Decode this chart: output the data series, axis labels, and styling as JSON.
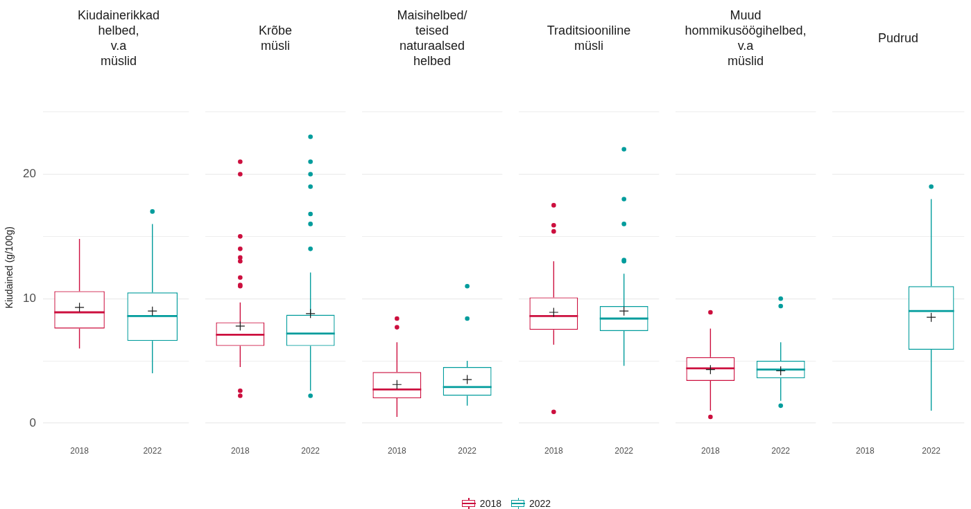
{
  "chart_data": [
    {
      "type": "box",
      "title": "Kiudainerikkad\nhelbed,\nv.a\nmüslid",
      "ylabel": "Kiudained (g/100g)",
      "categories": [
        "2018",
        "2022"
      ],
      "series": [
        {
          "name": "2018",
          "color": "#cc0f3e",
          "boxes": [
            {
              "low": 6.0,
              "q1": 7.6,
              "median": 8.9,
              "q3": 10.6,
              "high": 14.8,
              "mean": 9.3
            },
            null
          ]
        },
        {
          "name": "2022",
          "color": "#009c9c",
          "boxes": [
            null,
            {
              "low": 4.0,
              "q1": 6.6,
              "median": 8.6,
              "q3": 10.5,
              "high": 16.0,
              "mean": 9.0,
              "outliers": [
                17.0
              ]
            }
          ]
        }
      ],
      "ylim": [
        0,
        25
      ],
      "yticks": [
        0,
        {
          "value": 5,
          "label": null
        },
        10,
        {
          "value": 15,
          "label": null
        },
        20,
        {
          "value": 25,
          "label": null
        }
      ],
      "grid": "y",
      "legend": "bottom"
    },
    {
      "type": "box",
      "title": "Krõbe\nmüsli",
      "categories": [
        "2018",
        "2022"
      ],
      "series": [
        {
          "name": "2018",
          "color": "#cc0f3e",
          "boxes": [
            {
              "low": 4.5,
              "q1": 6.2,
              "median": 7.1,
              "q3": 8.1,
              "high": 9.7,
              "mean": 7.8,
              "outliers": [
                2.2,
                2.6,
                11.0,
                11.1,
                11.7,
                13.0,
                13.3,
                14.0,
                15.0,
                20.0,
                21.0
              ]
            },
            null
          ]
        },
        {
          "name": "2022",
          "color": "#009c9c",
          "boxes": [
            null,
            {
              "low": 2.6,
              "q1": 6.2,
              "median": 7.2,
              "q3": 8.7,
              "high": 12.1,
              "mean": 8.8,
              "outliers": [
                2.2,
                14.0,
                16.0,
                16.8,
                19.0,
                20.0,
                21.0,
                23.0
              ]
            }
          ]
        }
      ],
      "ylim": [
        0,
        25
      ],
      "yticks": [
        0,
        {
          "value": 5,
          "label": null
        },
        10,
        {
          "value": 15,
          "label": null
        },
        20,
        {
          "value": 25,
          "label": null
        }
      ],
      "grid": "y",
      "legend": "bottom",
      "tick_labels": "x"
    },
    {
      "type": "box",
      "title": "Maisihelbed/\nteised\nnaturaalsed\nhelbed",
      "categories": [
        "2018",
        "2022"
      ],
      "series": [
        {
          "name": "2018",
          "color": "#cc0f3e",
          "boxes": [
            {
              "low": 0.5,
              "q1": 2.0,
              "median": 2.7,
              "q3": 4.1,
              "high": 6.5,
              "mean": 3.1,
              "outliers": [
                7.7,
                8.4
              ]
            },
            null
          ]
        },
        {
          "name": "2022",
          "color": "#009c9c",
          "boxes": [
            null,
            {
              "low": 1.4,
              "q1": 2.2,
              "median": 2.9,
              "q3": 4.5,
              "high": 5.0,
              "mean": 3.5,
              "outliers": [
                8.4,
                11.0
              ]
            }
          ]
        }
      ],
      "ylim": [
        0,
        25
      ],
      "yticks": [
        0,
        {
          "value": 5,
          "label": null
        },
        10,
        {
          "value": 15,
          "label": null
        },
        20,
        {
          "value": 25,
          "label": null
        }
      ],
      "grid": "y",
      "legend": "bottom",
      "tick_labels": "x"
    },
    {
      "type": "box",
      "title": "Traditsiooniline\nmüsli",
      "categories": [
        "2018",
        "2022"
      ],
      "series": [
        {
          "name": "2018",
          "color": "#cc0f3e",
          "boxes": [
            {
              "low": 6.3,
              "q1": 7.5,
              "median": 8.6,
              "q3": 10.1,
              "high": 13.0,
              "mean": 8.9,
              "outliers": [
                0.9,
                15.4,
                15.9,
                17.5
              ]
            },
            null
          ]
        },
        {
          "name": "2022",
          "color": "#009c9c",
          "boxes": [
            null,
            {
              "low": 4.6,
              "q1": 7.4,
              "median": 8.4,
              "q3": 9.4,
              "high": 12.0,
              "mean": 9.0,
              "outliers": [
                13.0,
                13.1,
                16.0,
                18.0,
                22.0
              ]
            }
          ]
        }
      ],
      "ylim": [
        0,
        25
      ],
      "yticks": [
        0,
        {
          "value": 5,
          "label": null
        },
        10,
        {
          "value": 15,
          "label": null
        },
        20,
        {
          "value": 25,
          "label": null
        }
      ],
      "grid": "y",
      "legend": "bottom",
      "tick_labels": "x"
    },
    {
      "type": "box",
      "title": "Muud\nhommikusöögihelbed,\nv.a\nmüslid",
      "categories": [
        "2018",
        "2022"
      ],
      "series": [
        {
          "name": "2018",
          "color": "#cc0f3e",
          "boxes": [
            {
              "low": 1.0,
              "q1": 3.4,
              "median": 4.4,
              "q3": 5.3,
              "high": 7.6,
              "mean": 4.3,
              "outliers": [
                0.5,
                8.9
              ]
            },
            null
          ]
        },
        {
          "name": "2022",
          "color": "#009c9c",
          "boxes": [
            null,
            {
              "low": 1.8,
              "q1": 3.6,
              "median": 4.3,
              "q3": 5.0,
              "high": 6.5,
              "mean": 4.2,
              "outliers": [
                1.4,
                9.4,
                10.0
              ]
            }
          ]
        }
      ],
      "ylim": [
        0,
        25
      ],
      "yticks": [
        0,
        {
          "value": 5,
          "label": null
        },
        10,
        {
          "value": 15,
          "label": null
        },
        20,
        {
          "value": 25,
          "label": null
        }
      ],
      "grid": "y",
      "legend": "bottom",
      "tick_labels": "x"
    },
    {
      "type": "box",
      "title": "Pudrud",
      "categories": [
        "2018",
        "2022"
      ],
      "series": [
        {
          "name": "2018",
          "color": "#cc0f3e",
          "boxes": [
            null,
            null
          ]
        },
        {
          "name": "2022",
          "color": "#009c9c",
          "boxes": [
            null,
            {
              "low": 1.0,
              "q1": 5.9,
              "median": 9.0,
              "q3": 11.0,
              "high": 18.0,
              "mean": 8.5,
              "outliers": [
                19.0
              ]
            }
          ]
        }
      ],
      "ylim": [
        0,
        25
      ],
      "yticks": [
        0,
        {
          "value": 5,
          "label": null
        },
        10,
        {
          "value": 15,
          "label": null
        },
        20,
        {
          "value": 25,
          "label": null
        }
      ],
      "grid": "y",
      "legend": "bottom",
      "tick_labels": "x"
    }
  ]
}
